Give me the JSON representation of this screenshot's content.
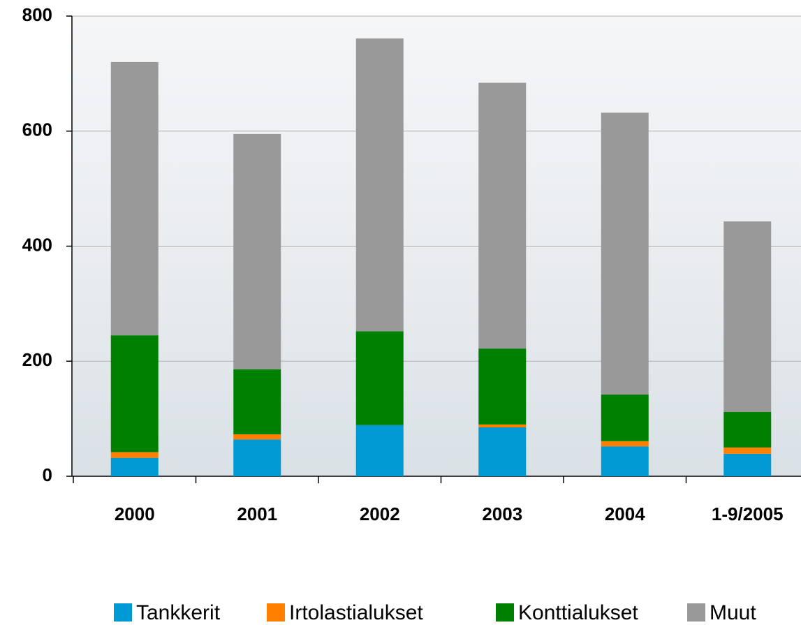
{
  "chart_data": {
    "type": "stacked_bar",
    "categories": [
      "2000",
      "2001",
      "2002",
      "2003",
      "2004",
      "1-9/2005"
    ],
    "series": [
      {
        "name": "Tankkerit",
        "color": "#0099d4",
        "values": [
          32,
          64,
          89,
          85,
          52,
          39
        ]
      },
      {
        "name": "Irtolastialukset",
        "color": "#ff8000",
        "values": [
          10,
          9,
          0,
          5,
          9,
          11
        ]
      },
      {
        "name": "Konttialukset",
        "color": "#008000",
        "values": [
          203,
          113,
          163,
          132,
          81,
          62
        ]
      },
      {
        "name": "Muut",
        "color": "#999999",
        "values": [
          475,
          409,
          509,
          462,
          490,
          331
        ]
      }
    ],
    "ylim": [
      0,
      800
    ],
    "yticks": [
      0,
      200,
      400,
      600,
      800
    ],
    "grid": true
  }
}
